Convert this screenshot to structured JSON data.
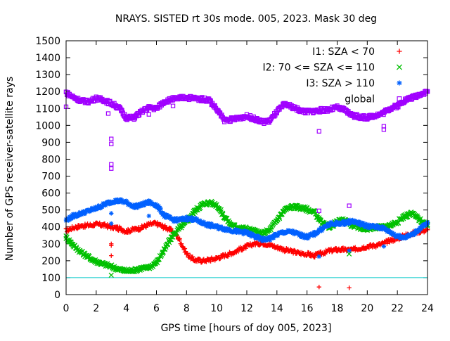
{
  "chart_data": {
    "type": "scatter",
    "title": "NRAYS. SISTED rt 30s mode. 005, 2023. Mask 30 deg",
    "xlabel": "GPS time [hours of doy 005, 2023]",
    "ylabel": "Number of GPS receiver-satellite rays",
    "xlim": [
      0,
      24
    ],
    "ylim": [
      0,
      1500
    ],
    "x_ticks": [
      0,
      2,
      4,
      6,
      8,
      10,
      12,
      14,
      16,
      18,
      20,
      22,
      24
    ],
    "y_ticks": [
      0,
      100,
      200,
      300,
      400,
      500,
      600,
      700,
      800,
      900,
      1000,
      1100,
      1200,
      1300,
      1400,
      1500
    ],
    "reference_line": {
      "y": 100,
      "color": "#00c8c8"
    },
    "legend_position": "top-right",
    "series": [
      {
        "name": "I1: SZA < 70",
        "marker": "plus",
        "color": "#ff0000",
        "x": [
          0,
          0.5,
          1,
          1.5,
          2,
          2.5,
          3,
          3.5,
          4,
          4.5,
          5,
          5.5,
          6,
          6.5,
          7,
          7.5,
          8,
          8.5,
          9,
          9.5,
          10,
          10.5,
          11,
          11.5,
          12,
          12.5,
          13,
          13.5,
          14,
          14.5,
          15,
          15.5,
          16,
          16.5,
          17,
          17.5,
          18,
          18.5,
          19,
          19.5,
          20,
          20.5,
          21,
          21.5,
          22,
          22.5,
          23,
          23.5,
          24
        ],
        "y": [
          380,
          395,
          405,
          410,
          415,
          410,
          400,
          390,
          375,
          385,
          395,
          415,
          420,
          400,
          380,
          330,
          240,
          205,
          200,
          205,
          215,
          230,
          245,
          265,
          285,
          300,
          305,
          295,
          280,
          265,
          255,
          245,
          240,
          230,
          245,
          260,
          265,
          265,
          265,
          275,
          285,
          290,
          300,
          320,
          330,
          350,
          360,
          375,
          380
        ],
        "outliers_x": [
          3.0,
          3.0,
          3.0,
          16.8,
          18.8
        ],
        "outliers_y": [
          300,
          290,
          230,
          45,
          40
        ]
      },
      {
        "name": "I2: 70 <= SZA <= 110",
        "marker": "cross",
        "color": "#00c000",
        "x": [
          0,
          0.5,
          1,
          1.5,
          2,
          2.5,
          3,
          3.5,
          4,
          4.5,
          5,
          5.5,
          6,
          6.5,
          7,
          7.5,
          8,
          8.5,
          9,
          9.5,
          10,
          10.5,
          11,
          11.5,
          12,
          12.5,
          13,
          13.5,
          14,
          14.5,
          15,
          15.5,
          16,
          16.5,
          17,
          17.5,
          18,
          18.5,
          19,
          19.5,
          20,
          20.5,
          21,
          21.5,
          22,
          22.5,
          23,
          23.5,
          24
        ],
        "y": [
          340,
          290,
          250,
          220,
          195,
          180,
          165,
          150,
          140,
          145,
          155,
          160,
          190,
          260,
          340,
          390,
          430,
          490,
          530,
          545,
          530,
          460,
          410,
          395,
          390,
          375,
          360,
          380,
          440,
          500,
          520,
          515,
          505,
          485,
          420,
          400,
          430,
          440,
          410,
          395,
          390,
          395,
          400,
          410,
          430,
          465,
          480,
          440,
          410
        ],
        "outliers_x": [
          3.0,
          18.8
        ],
        "outliers_y": [
          115,
          240
        ]
      },
      {
        "name": "I3: SZA > 110",
        "marker": "star",
        "color": "#0060ff",
        "x": [
          0,
          0.5,
          1,
          1.5,
          2,
          2.5,
          3,
          3.5,
          4,
          4.5,
          5,
          5.5,
          6,
          6.5,
          7,
          7.5,
          8,
          8.5,
          9,
          9.5,
          10,
          10.5,
          11,
          11.5,
          12,
          12.5,
          13,
          13.5,
          14,
          14.5,
          15,
          15.5,
          16,
          16.5,
          17,
          17.5,
          18,
          18.5,
          19,
          19.5,
          20,
          20.5,
          21,
          21.5,
          22,
          22.5,
          23,
          23.5,
          24
        ],
        "y": [
          440,
          465,
          480,
          495,
          510,
          530,
          550,
          555,
          545,
          520,
          530,
          545,
          530,
          470,
          445,
          440,
          450,
          445,
          425,
          410,
          400,
          390,
          380,
          370,
          365,
          345,
          325,
          330,
          355,
          370,
          370,
          355,
          340,
          360,
          390,
          415,
          420,
          425,
          435,
          420,
          405,
          400,
          395,
          370,
          345,
          340,
          355,
          390,
          420
        ],
        "outliers_x": [
          3.0,
          3.0,
          5.5,
          16.8,
          18.8,
          21.1
        ],
        "outliers_y": [
          480,
          420,
          465,
          225,
          260,
          285
        ]
      },
      {
        "name": "global",
        "marker": "square",
        "color": "#a000ff",
        "x": [
          0,
          0.5,
          1,
          1.5,
          2,
          2.5,
          3,
          3.5,
          4,
          4.5,
          5,
          5.5,
          6,
          6.5,
          7,
          7.5,
          8,
          8.5,
          9,
          9.5,
          10,
          10.5,
          11,
          11.5,
          12,
          12.5,
          13,
          13.5,
          14,
          14.5,
          15,
          15.5,
          16,
          16.5,
          17,
          17.5,
          18,
          18.5,
          19,
          19.5,
          20,
          20.5,
          21,
          21.5,
          22,
          22.5,
          23,
          23.5,
          24
        ],
        "y": [
          1195,
          1165,
          1145,
          1140,
          1160,
          1150,
          1130,
          1105,
          1045,
          1045,
          1080,
          1105,
          1100,
          1140,
          1155,
          1160,
          1165,
          1160,
          1155,
          1150,
          1095,
          1030,
          1035,
          1045,
          1055,
          1040,
          1020,
          1025,
          1080,
          1125,
          1110,
          1090,
          1080,
          1085,
          1090,
          1095,
          1105,
          1090,
          1060,
          1050,
          1045,
          1060,
          1070,
          1100,
          1115,
          1150,
          1165,
          1185,
          1200
        ],
        "outliers_x": [
          3.0,
          3.0,
          3.0,
          3.0,
          2.8,
          0.0,
          5.5,
          7.1,
          16.8,
          16.8,
          18.8,
          21.1,
          21.1
        ],
        "outliers_y": [
          920,
          890,
          770,
          745,
          1070,
          1110,
          1065,
          1115,
          495,
          965,
          525,
          995,
          975
        ]
      }
    ]
  }
}
